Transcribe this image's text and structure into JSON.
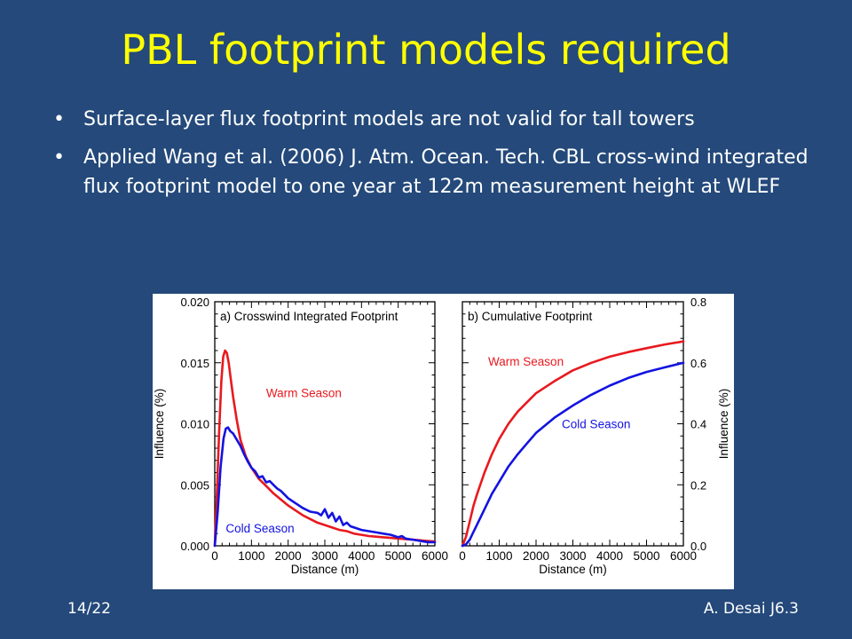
{
  "slide": {
    "title": "PBL footprint models required",
    "bullets": [
      "Surface-layer flux footprint models are not valid for tall towers",
      "Applied Wang et al. (2006) J. Atm. Ocean. Tech. CBL cross-wind integrated flux footprint model to one year at 122m measurement height at WLEF"
    ],
    "bullet_glyph": "•",
    "footer_left": "14/22",
    "footer_right": "A. Desai J6.3"
  },
  "chart_data": [
    {
      "type": "line",
      "title": "a) Crosswind Integrated Footprint",
      "xlabel": "Distance (m)",
      "ylabel": "Influence (%)",
      "xlim": [
        0,
        6000
      ],
      "ylim": [
        0,
        0.02
      ],
      "xticks": [
        "0",
        "1000",
        "2000",
        "3000",
        "4000",
        "5000",
        "6000"
      ],
      "yticks": [
        "0.000",
        "0.005",
        "0.010",
        "0.015",
        "0.020"
      ],
      "grid": false,
      "series": [
        {
          "name": "Warm Season",
          "color": "#e8191f",
          "x": [
            0,
            60,
            120,
            180,
            230,
            280,
            330,
            380,
            430,
            500,
            600,
            700,
            850,
            1000,
            1200,
            1400,
            1600,
            1800,
            2000,
            2200,
            2400,
            2600,
            2800,
            3000,
            3200,
            3400,
            3600,
            3800,
            4000,
            4200,
            4400,
            4600,
            4800,
            5000,
            5200,
            5400,
            5600,
            5800,
            6000
          ],
          "values": [
            0.0,
            0.0045,
            0.0095,
            0.0135,
            0.0155,
            0.016,
            0.0158,
            0.015,
            0.0138,
            0.0122,
            0.0103,
            0.0087,
            0.0073,
            0.0064,
            0.0055,
            0.0049,
            0.0043,
            0.0038,
            0.0033,
            0.0029,
            0.0025,
            0.0022,
            0.0019,
            0.0017,
            0.0015,
            0.0013,
            0.0012,
            0.001,
            0.0009,
            0.0008,
            0.00075,
            0.0007,
            0.00065,
            0.0006,
            0.00055,
            0.0005,
            0.00045,
            0.0004,
            0.00035
          ]
        },
        {
          "name": "Cold Season",
          "color": "#1313e0",
          "x": [
            0,
            80,
            160,
            240,
            300,
            360,
            420,
            500,
            600,
            700,
            800,
            900,
            1000,
            1100,
            1200,
            1300,
            1400,
            1500,
            1600,
            1700,
            1800,
            2000,
            2200,
            2400,
            2600,
            2800,
            2900,
            3000,
            3100,
            3200,
            3300,
            3400,
            3500,
            3600,
            3700,
            3800,
            4000,
            4200,
            4400,
            4600,
            4800,
            4900,
            5000,
            5100,
            5200,
            5400,
            5600,
            5800,
            6000
          ],
          "values": [
            0.0,
            0.0028,
            0.0065,
            0.0088,
            0.0096,
            0.0097,
            0.0094,
            0.0092,
            0.0087,
            0.0082,
            0.0075,
            0.0069,
            0.0064,
            0.0061,
            0.0056,
            0.0057,
            0.0052,
            0.0053,
            0.005,
            0.0047,
            0.0045,
            0.0039,
            0.0035,
            0.0031,
            0.0028,
            0.0027,
            0.0025,
            0.003,
            0.0023,
            0.0027,
            0.002,
            0.0024,
            0.0017,
            0.0019,
            0.0016,
            0.0015,
            0.0013,
            0.0012,
            0.0011,
            0.001,
            0.0009,
            0.0008,
            0.0007,
            0.0008,
            0.0006,
            0.0005,
            0.0004,
            0.0003,
            0.0003
          ]
        }
      ],
      "annotations": [
        {
          "text": "Warm Season",
          "color": "#e8191f",
          "x": 1400,
          "y": 0.0122
        },
        {
          "text": "Cold Season",
          "color": "#1313e0",
          "x": 300,
          "y": 0.0011
        }
      ]
    },
    {
      "type": "line",
      "title": "b) Cumulative Footprint",
      "xlabel": "Distance (m)",
      "ylabel": "Influence (%)",
      "xlim": [
        0,
        6000
      ],
      "ylim": [
        0,
        0.8
      ],
      "xticks": [
        "0",
        "1000",
        "2000",
        "3000",
        "4000",
        "5000",
        "6000"
      ],
      "yticks": [
        "0.0",
        "0.2",
        "0.4",
        "0.6",
        "0.8"
      ],
      "yaxis_position": "right",
      "grid": false,
      "series": [
        {
          "name": "Warm Season",
          "color": "#e8191f",
          "x": [
            0,
            100,
            200,
            300,
            400,
            600,
            800,
            1000,
            1250,
            1500,
            1750,
            2000,
            2500,
            3000,
            3500,
            4000,
            4500,
            5000,
            5500,
            6000
          ],
          "values": [
            0.0,
            0.03,
            0.08,
            0.13,
            0.17,
            0.24,
            0.3,
            0.35,
            0.4,
            0.44,
            0.47,
            0.5,
            0.54,
            0.575,
            0.6,
            0.62,
            0.635,
            0.648,
            0.66,
            0.67
          ]
        },
        {
          "name": "Cold Season",
          "color": "#1313e0",
          "x": [
            0,
            100,
            200,
            300,
            400,
            600,
            800,
            1000,
            1250,
            1500,
            1750,
            2000,
            2500,
            3000,
            3500,
            4000,
            4500,
            5000,
            5500,
            6000
          ],
          "values": [
            0.0,
            0.005,
            0.02,
            0.045,
            0.07,
            0.12,
            0.17,
            0.21,
            0.26,
            0.3,
            0.335,
            0.37,
            0.42,
            0.46,
            0.495,
            0.525,
            0.55,
            0.57,
            0.585,
            0.6
          ]
        }
      ],
      "annotations": [
        {
          "text": "Warm Season",
          "color": "#e8191f",
          "x": 700,
          "y": 0.59
        },
        {
          "text": "Cold Season",
          "color": "#1313e0",
          "x": 2700,
          "y": 0.385
        }
      ]
    }
  ]
}
